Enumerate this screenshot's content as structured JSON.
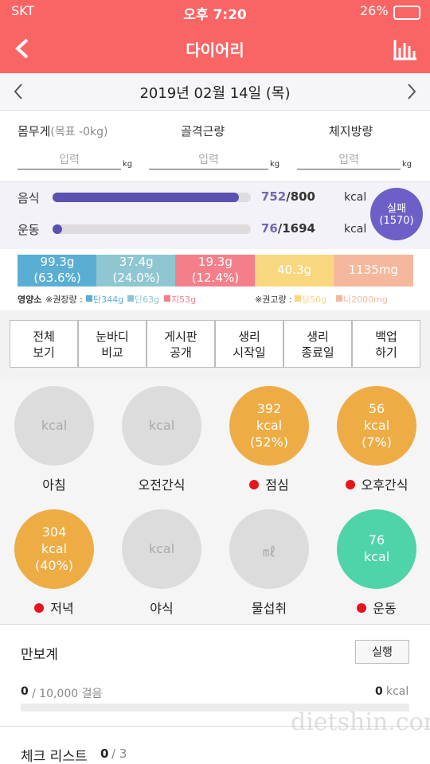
{
  "status_bar": {
    "carrier": "SKT",
    "time": "오후 7:20",
    "battery": "26%"
  },
  "header": {
    "title": "다이어리"
  },
  "date_bar": {
    "date": "2019년 02월 14일 (목)"
  },
  "body_metrics": [
    {
      "label": "몸무게",
      "note": "(목표 -0kg)",
      "placeholder": "입력",
      "unit": "kg"
    },
    {
      "label": "골격근량",
      "placeholder": "입력",
      "unit": "kg"
    },
    {
      "label": "체지방량",
      "placeholder": "입력",
      "unit": "kg"
    }
  ],
  "energy": {
    "rows": [
      {
        "label": "음식",
        "current": 752,
        "separator": "/",
        "goal": 800,
        "unit": "kcal"
      },
      {
        "label": "운동",
        "current": 76,
        "separator": "/",
        "goal": 1694,
        "unit": "kcal"
      }
    ],
    "badge": {
      "status": "실패",
      "value": "(1570)"
    }
  },
  "nutrients": {
    "segments": [
      {
        "lines": [
          "99.3g",
          "(63.6%)"
        ],
        "color": "#5aaed3"
      },
      {
        "lines": [
          "37.4g",
          "(24.0%)"
        ],
        "color": "#8ec7d2"
      },
      {
        "lines": [
          "19.3g",
          "(12.4%)"
        ],
        "color": "#f47f8b"
      },
      {
        "lines": [
          "40.3g"
        ],
        "color": "#f8d77f"
      },
      {
        "lines": [
          "1135mg"
        ],
        "color": "#f5b89c"
      }
    ],
    "legend": {
      "title": "영양소",
      "recommended": "※권장량 :",
      "recommended_items": [
        {
          "text": "탄344g",
          "color": "#5aaed3"
        },
        {
          "text": "단63g",
          "color": "#8ec7d2"
        },
        {
          "text": "지53g",
          "color": "#f47f8b"
        }
      ],
      "advised": "※권고량 :",
      "advised_items": [
        {
          "text": "당50g",
          "color": "#f8d77f"
        },
        {
          "text": "나2000mg",
          "color": "#f5b89c"
        }
      ]
    }
  },
  "buttons": [
    {
      "lines": [
        "전체",
        "보기"
      ]
    },
    {
      "lines": [
        "눈바디",
        "비교"
      ]
    },
    {
      "lines": [
        "게시판",
        "공개"
      ]
    },
    {
      "lines": [
        "생리",
        "시작일"
      ]
    },
    {
      "lines": [
        "생리",
        "종료일"
      ]
    },
    {
      "lines": [
        "백업",
        "하기"
      ]
    }
  ],
  "meals": [
    {
      "label": "아침",
      "lines": [
        "kcal"
      ],
      "color": "#dcdcdc",
      "dot": false
    },
    {
      "label": "오전간식",
      "lines": [
        "kcal"
      ],
      "color": "#dcdcdc",
      "dot": false
    },
    {
      "label": "점심",
      "lines": [
        "392",
        "kcal",
        "(52%)"
      ],
      "color": "#eeac44",
      "dot": true
    },
    {
      "label": "오후간식",
      "lines": [
        "56",
        "kcal",
        "(7%)"
      ],
      "color": "#eeac44",
      "dot": true
    },
    {
      "label": "저녁",
      "lines": [
        "304",
        "kcal",
        "(40%)"
      ],
      "color": "#eeac44",
      "dot": true
    },
    {
      "label": "야식",
      "lines": [
        "kcal"
      ],
      "color": "#dcdcdc",
      "dot": false
    },
    {
      "label": "물섭취",
      "lines": [
        "㎖"
      ],
      "color": "#dcdcdc",
      "dot": false
    },
    {
      "label": "운동",
      "lines": [
        "76",
        "kcal"
      ],
      "color": "#4fd3a8",
      "dot": true
    }
  ],
  "pedometer": {
    "title": "만보계",
    "button": "실행",
    "steps": "0",
    "goal": "/ 10,000 걸음",
    "kcal": "0",
    "kcal_unit": "kcal"
  },
  "checklist": {
    "title": "체크 리스트",
    "done": "0",
    "total": "/ 3"
  },
  "watermark": "dietshin.com"
}
